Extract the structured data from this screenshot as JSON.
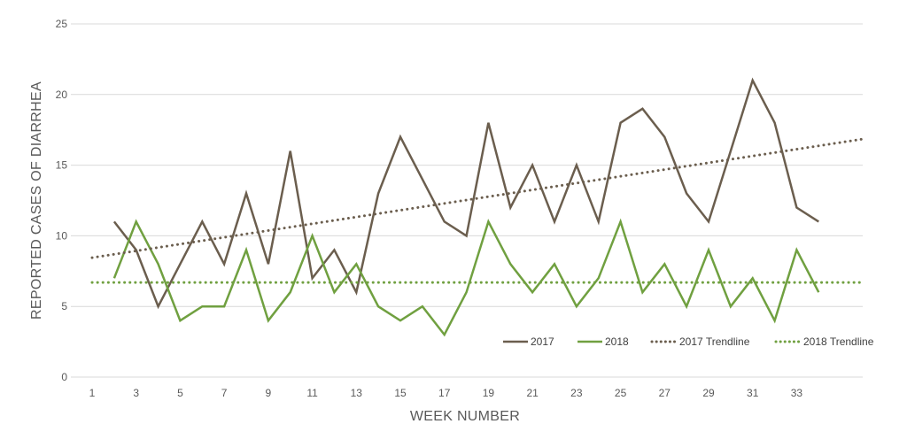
{
  "chart_data": {
    "type": "line",
    "title": "",
    "xlabel": "WEEK NUMBER",
    "ylabel": "REPORTED CASES OF DIARRHEA",
    "xlim": [
      1,
      36
    ],
    "ylim": [
      0,
      25
    ],
    "x_ticks": [
      1,
      3,
      5,
      7,
      9,
      11,
      13,
      15,
      17,
      19,
      21,
      23,
      25,
      27,
      29,
      31,
      33
    ],
    "y_ticks": [
      0,
      5,
      10,
      15,
      20,
      25
    ],
    "grid": "horizontal",
    "legend_position": "bottom-right",
    "x": [
      2,
      3,
      4,
      5,
      6,
      7,
      8,
      9,
      10,
      11,
      12,
      13,
      14,
      15,
      16,
      17,
      18,
      19,
      20,
      21,
      22,
      23,
      24,
      25,
      26,
      27,
      28,
      29,
      30,
      31,
      32,
      33,
      34
    ],
    "series": [
      {
        "name": "2017",
        "color": "#6b5e4e",
        "style": "solid",
        "values": [
          11,
          9,
          5,
          8,
          11,
          8,
          13,
          8,
          16,
          7,
          9,
          6,
          13,
          17,
          14,
          11,
          10,
          18,
          12,
          15,
          11,
          15,
          11,
          18,
          19,
          17,
          13,
          11,
          16,
          21,
          18,
          12,
          11
        ]
      },
      {
        "name": "2018",
        "color": "#70a040",
        "style": "solid",
        "values": [
          7,
          11,
          8,
          4,
          5,
          5,
          9,
          4,
          6,
          10,
          6,
          8,
          5,
          4,
          5,
          3,
          6,
          11,
          8,
          6,
          8,
          5,
          7,
          11,
          6,
          8,
          5,
          9,
          5,
          7,
          4,
          9,
          6
        ]
      },
      {
        "name": "2017 Trendline",
        "color": "#6b5e4e",
        "style": "dotted",
        "points": [
          [
            1,
            8.45
          ],
          [
            36,
            16.85
          ]
        ]
      },
      {
        "name": "2018 Trendline",
        "color": "#70a040",
        "style": "dotted",
        "points": [
          [
            1,
            6.7
          ],
          [
            36,
            6.7
          ]
        ]
      }
    ]
  }
}
